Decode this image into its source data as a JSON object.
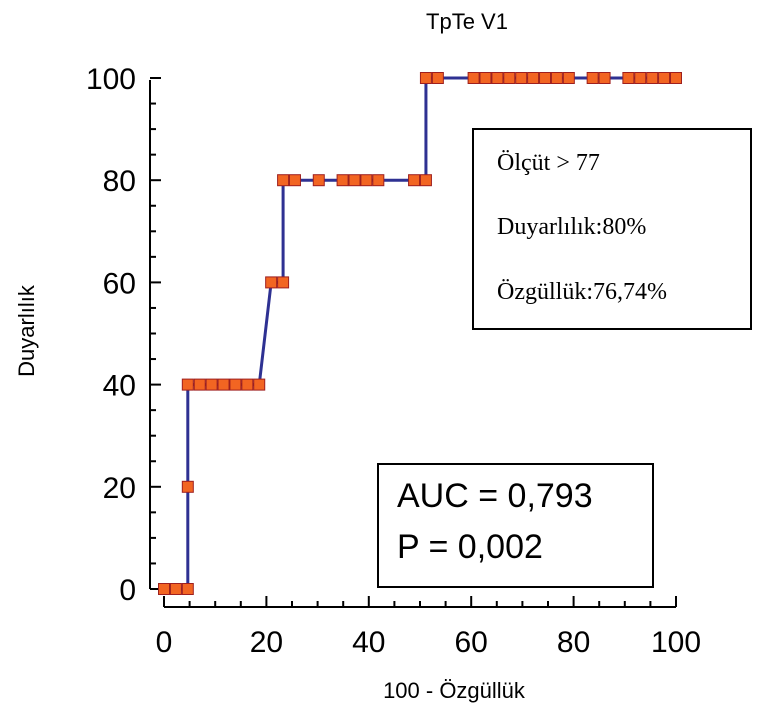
{
  "chart_data": {
    "type": "line",
    "title": "TpTe V1",
    "xlabel": "100 - Özgüllük",
    "ylabel": "Duyarlılık",
    "xlim": [
      0,
      100
    ],
    "ylim": [
      0,
      100
    ],
    "x_ticks": [
      "0",
      "20",
      "40",
      "60",
      "80",
      "100"
    ],
    "y_ticks": [
      "0",
      "20",
      "40",
      "60",
      "80",
      "100"
    ],
    "line_color": "#2e3192",
    "marker_color": "#f26522",
    "marker_edge_color": "#9e1f1f",
    "grid": false,
    "series": [
      {
        "points": [
          [
            0,
            0
          ],
          [
            2.33,
            0
          ],
          [
            4.65,
            0
          ],
          [
            4.65,
            20
          ],
          [
            4.65,
            40
          ],
          [
            6.98,
            40
          ],
          [
            9.3,
            40
          ],
          [
            11.63,
            40
          ],
          [
            13.95,
            40
          ],
          [
            16.28,
            40
          ],
          [
            18.6,
            40
          ],
          [
            20.93,
            60
          ],
          [
            23.26,
            60
          ],
          [
            23.26,
            80
          ],
          [
            25.58,
            80
          ],
          [
            30.23,
            80
          ],
          [
            34.88,
            80
          ],
          [
            37.21,
            80
          ],
          [
            39.53,
            80
          ],
          [
            41.86,
            80
          ],
          [
            48.84,
            80
          ],
          [
            51.16,
            80
          ],
          [
            51.16,
            100
          ],
          [
            53.49,
            100
          ],
          [
            60.47,
            100
          ],
          [
            62.79,
            100
          ],
          [
            65.12,
            100
          ],
          [
            67.44,
            100
          ],
          [
            69.77,
            100
          ],
          [
            72.09,
            100
          ],
          [
            74.42,
            100
          ],
          [
            76.74,
            100
          ],
          [
            79.07,
            100
          ],
          [
            83.72,
            100
          ],
          [
            86.05,
            100
          ],
          [
            90.7,
            100
          ],
          [
            93.02,
            100
          ],
          [
            95.35,
            100
          ],
          [
            97.67,
            100
          ],
          [
            100,
            100
          ]
        ]
      }
    ],
    "annotation_box": {
      "criterion": "Ölçüt > 77",
      "sensitivity": "Duyarlılık:80%",
      "specificity": "Özgüllük:76,74%"
    },
    "stats_box": {
      "auc": "AUC = 0,793",
      "p": "P = 0,002"
    }
  }
}
